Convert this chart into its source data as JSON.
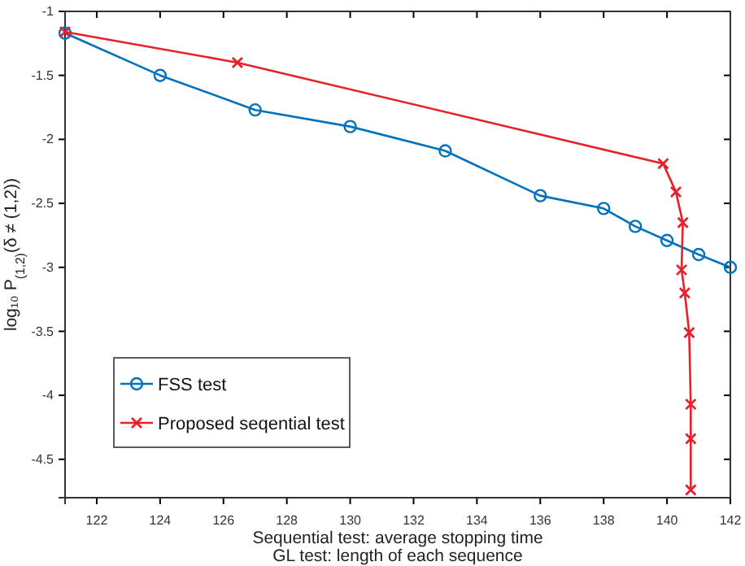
{
  "chart_data": {
    "type": "line",
    "xlabel": "Sequential test: average stopping time\nGL test: length of each sequence",
    "ylabel": "log₁₀ P$_{(1,2)}$(δ ≠ (1,2))",
    "xlim": [
      121,
      142
    ],
    "xticks": [
      122,
      124,
      126,
      128,
      130,
      132,
      134,
      136,
      138,
      140,
      142
    ],
    "ylim": [
      -4.8,
      -1
    ],
    "yticks": [
      -4.5,
      -4,
      -3.5,
      -3,
      -2.5,
      -2,
      -1.5,
      -1
    ],
    "legend": "bottom left",
    "grid": false,
    "series": [
      {
        "name": "FSS test",
        "color": "#0072bd",
        "marker": "circle",
        "x": [
          121,
          124,
          127,
          130,
          133,
          136,
          138,
          139,
          140,
          141,
          142
        ],
        "values": [
          -1.17,
          -1.5,
          -1.77,
          -1.9,
          -2.09,
          -2.44,
          -2.54,
          -2.68,
          -2.79,
          -2.9,
          -3.0
        ]
      },
      {
        "name": "Proposed seqential test",
        "color": "#e8202a",
        "marker": "cross",
        "x": [
          121,
          126.44,
          139.88,
          140.28,
          140.5,
          140.46,
          140.56,
          140.7,
          140.75,
          140.75,
          140.75
        ],
        "values": [
          -1.16,
          -1.4,
          -2.19,
          -2.41,
          -2.65,
          -3.02,
          -3.2,
          -3.51,
          -4.07,
          -4.34,
          -4.74
        ]
      }
    ]
  }
}
